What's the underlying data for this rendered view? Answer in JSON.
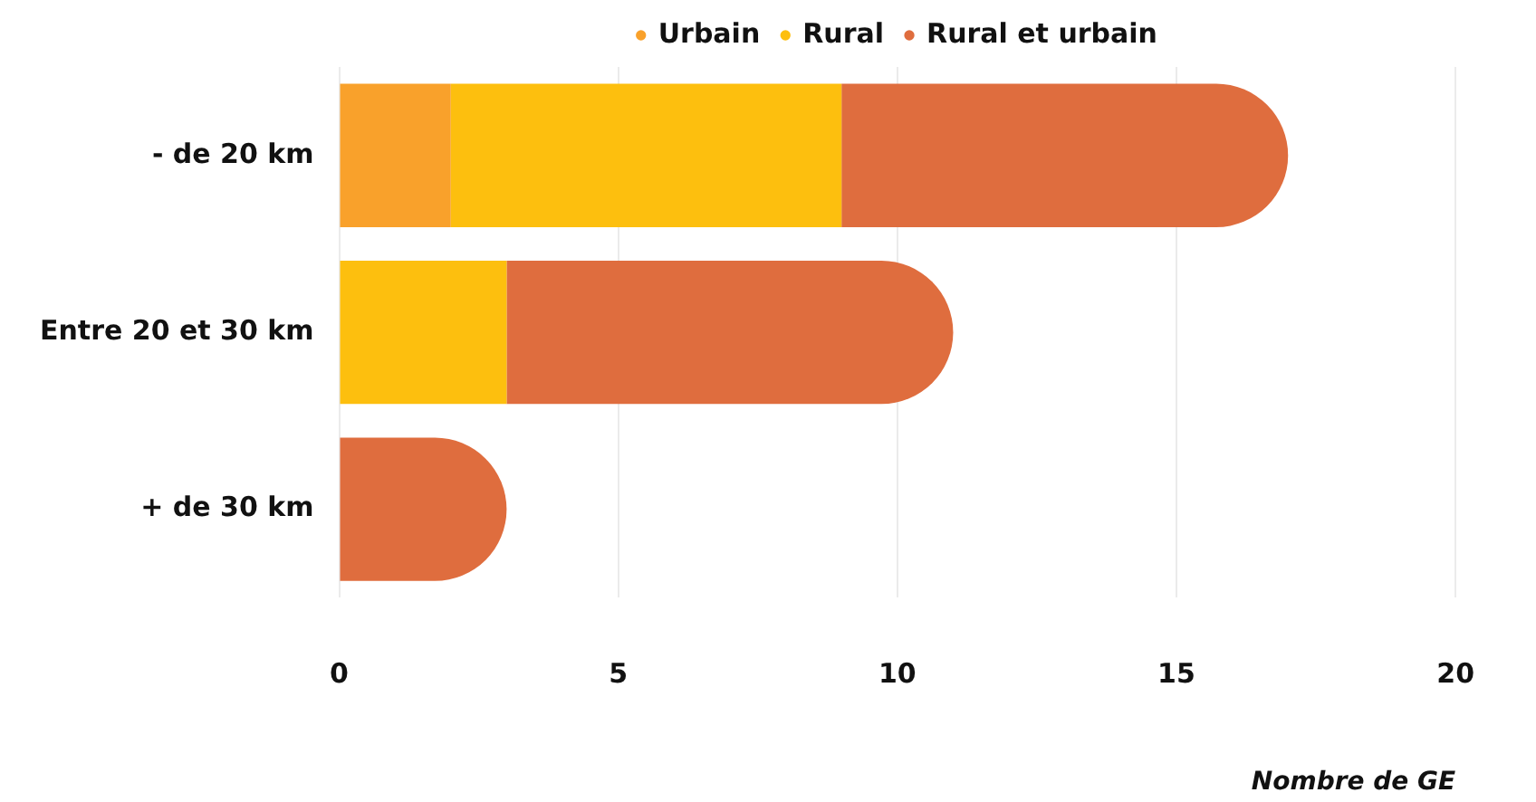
{
  "chart_data": {
    "type": "bar",
    "orientation": "horizontal",
    "stacked": true,
    "categories": [
      "- de 20 km",
      "Entre 20 et 30 km",
      "+ de 30 km"
    ],
    "series": [
      {
        "name": "Urbain",
        "color": "#f9a12b",
        "values": [
          2,
          0,
          0
        ]
      },
      {
        "name": "Rural",
        "color": "#fdbf0e",
        "values": [
          7,
          3,
          0
        ]
      },
      {
        "name": "Rural et urbain",
        "color": "#df6d3e",
        "values": [
          8,
          8,
          3
        ]
      }
    ],
    "xlabel": "Nombre de GE",
    "xlim": [
      0,
      20
    ],
    "xticks": [
      0,
      5,
      10,
      15,
      20
    ],
    "grid": "x",
    "legend": "top"
  }
}
